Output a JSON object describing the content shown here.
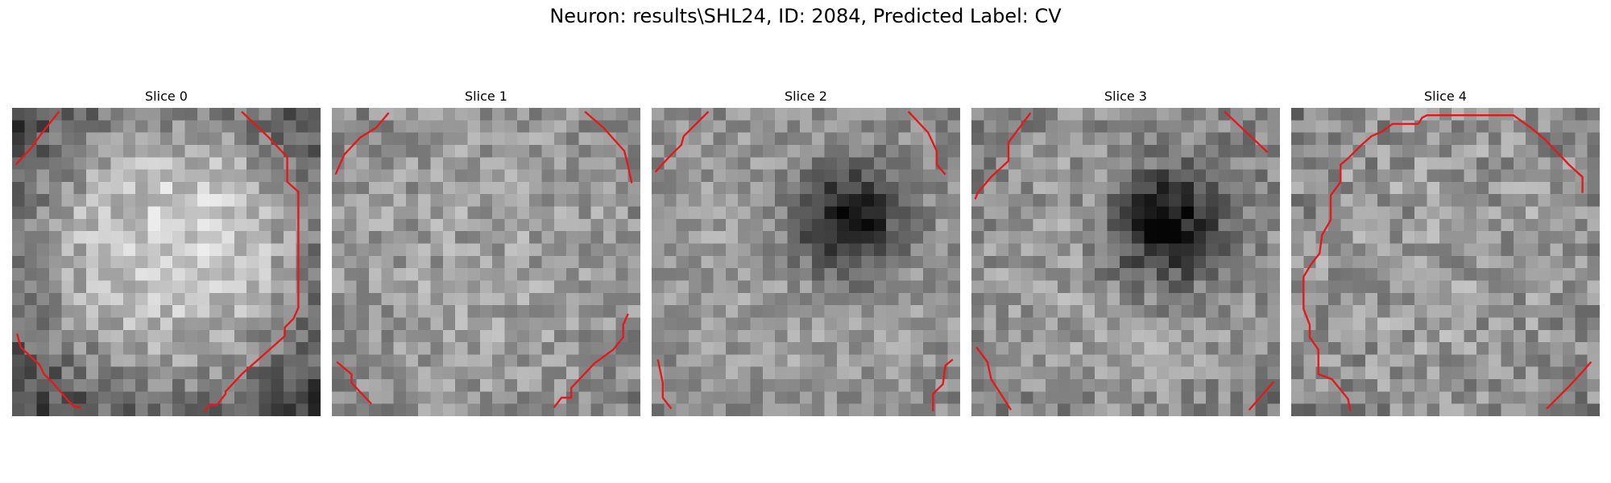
{
  "figure": {
    "suptitle": "Neuron: results\\SHL24, ID: 2084, Predicted Label: CV"
  },
  "slices": [
    {
      "title": "Slice 0"
    },
    {
      "title": "Slice 1"
    },
    {
      "title": "Slice 2"
    },
    {
      "title": "Slice 3"
    },
    {
      "title": "Slice 4"
    }
  ],
  "colors": {
    "contour": "#e31a1c",
    "background": "#ffffff"
  },
  "colormap": "gray"
}
